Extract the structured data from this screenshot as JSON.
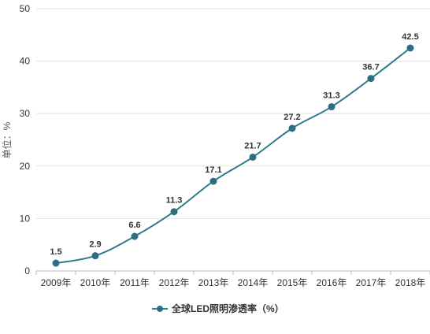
{
  "chart_data": {
    "type": "line",
    "title": "",
    "xlabel": "",
    "ylabel": "单位：%",
    "categories": [
      "2009年",
      "2010年",
      "2011年",
      "2012年",
      "2013年",
      "2014年",
      "2015年",
      "2016年",
      "2017年",
      "2018年"
    ],
    "series": [
      {
        "name": "全球LED照明渗透率（%）",
        "values": [
          1.5,
          2.9,
          6.6,
          11.3,
          17.1,
          21.7,
          27.2,
          31.3,
          36.7,
          42.5
        ],
        "labels": [
          "1.5",
          "2.9",
          "6.6",
          "11.3",
          "17.1",
          "21.7",
          "27.2",
          "31.3",
          "36.7",
          "42.5"
        ]
      }
    ],
    "ylim": [
      0,
      50
    ],
    "yticks": [
      0,
      10,
      20,
      30,
      40,
      50
    ],
    "grid": true,
    "legend_position": "bottom",
    "colors": {
      "line": "#2e7b8c",
      "marker": "#2e6e82",
      "grid": "#e3e3e3",
      "axis": "#bbbbbb"
    }
  }
}
